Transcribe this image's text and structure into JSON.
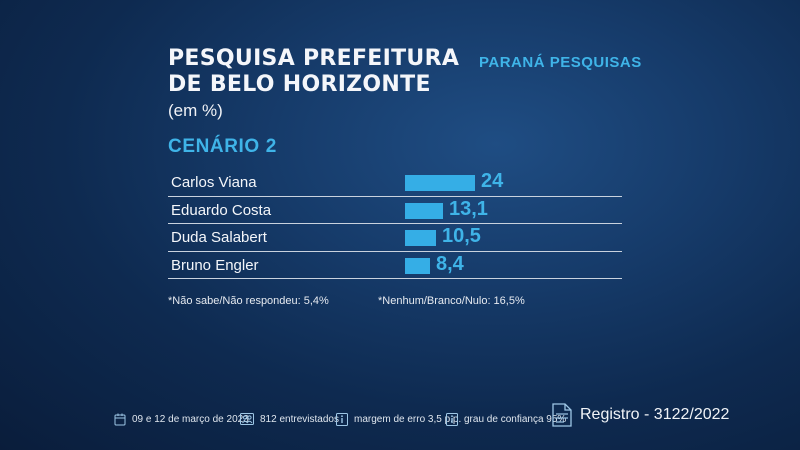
{
  "header": {
    "title_line1": "PESQUISA PREFEITURA",
    "title_line2": "DE BELO HORIZONTE",
    "unit": "(em %)",
    "source": "PARANÁ PESQUISAS",
    "scenario": "CENÁRIO 2"
  },
  "chart_data": {
    "type": "bar",
    "orientation": "horizontal",
    "title": "PESQUISA PREFEITURA DE BELO HORIZONTE",
    "unit": "(em %)",
    "subtitle": "CENÁRIO 2",
    "categories": [
      "Carlos Viana",
      "Eduardo Costa",
      "Duda Salabert",
      "Bruno Engler"
    ],
    "values": [
      24,
      13.1,
      10.5,
      8.4
    ],
    "value_labels": [
      "24",
      "13,1",
      "10,5",
      "8,4"
    ],
    "bar_color": "#35aee6",
    "label_color": "#3fb4e8",
    "grid": false
  },
  "notes": {
    "dont_know": "*Não sabe/Não respondeu: 5,4%",
    "none": "*Nenhum/Branco/Nulo: 16,5%"
  },
  "footer": {
    "dates": "09 e 12 de março de 2023",
    "interviewed": "812 entrevistados",
    "margin": "margem de erro 3,5 p.p.",
    "confidence": "grau de confiança 95%",
    "registration": "Registro - 3122/2022",
    "icons": [
      "calendar-icon",
      "people-icon",
      "info-icon",
      "info-icon",
      "document-icon"
    ]
  },
  "colors": {
    "accent": "#3fb4e8",
    "background": "#163b6a"
  }
}
